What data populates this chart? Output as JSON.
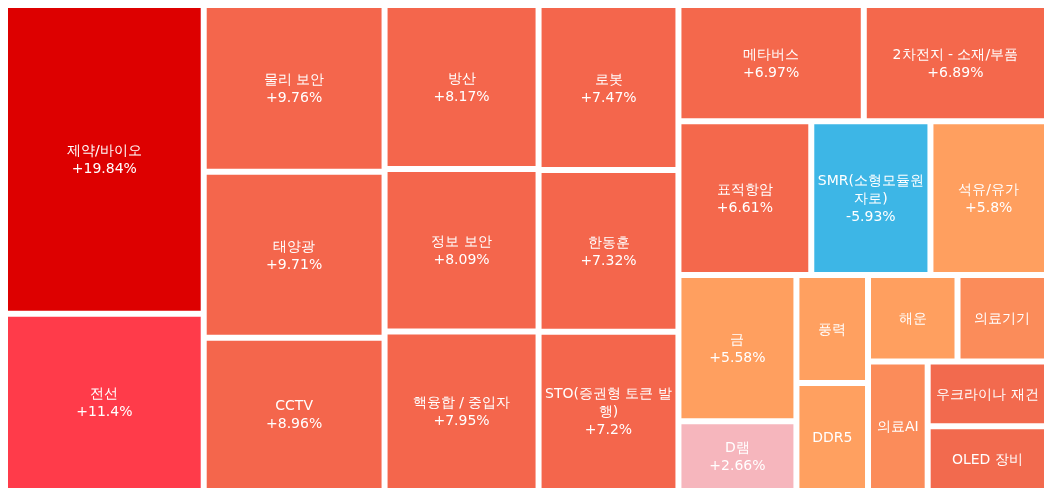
{
  "chart_data": {
    "type": "other",
    "categories": [
      "제약/바이오",
      "전선",
      "물리 보안",
      "태양광",
      "CCTV",
      "방산",
      "정보 보안",
      "핵융합 / 중입자",
      "로봇",
      "한동훈",
      "STO(증권형 토큰 발행)",
      "메타버스",
      "2차전지 - 소재/부품",
      "표적항암",
      "OLED 장비",
      "우크라이나 재건",
      "의료AI",
      "의료기기",
      "석유/유가",
      "해운",
      "금",
      "DDR5",
      "풍력",
      "D램",
      "SMR(소형모듈원자로)"
    ],
    "values": [
      19.84,
      11.4,
      9.76,
      9.71,
      8.96,
      8.17,
      8.09,
      7.95,
      7.47,
      7.32,
      7.2,
      6.97,
      6.89,
      6.61,
      null,
      null,
      null,
      null,
      5.8,
      null,
      5.58,
      null,
      null,
      2.66,
      -5.93
    ],
    "value_labels": [
      "+19.84%",
      "+11.4%",
      "+9.76%",
      "+9.71%",
      "+8.96%",
      "+8.17%",
      "+8.09%",
      "+7.95%",
      "+7.47%",
      "+7.32%",
      "+7.2%",
      "+6.97%",
      "+6.89%",
      "+6.61%",
      null,
      null,
      null,
      null,
      "+5.8%",
      null,
      "+5.58%",
      null,
      null,
      "+2.66%",
      "-5.93%"
    ],
    "colors": [
      "#dd0000",
      "#ff3b4a",
      "#f4664c",
      "#f4664c",
      "#f4664c",
      "#f4664c",
      "#f4664c",
      "#f4664c",
      "#f4664c",
      "#f4664c",
      "#f4664c",
      "#f4684c",
      "#f4684c",
      "#f4684c",
      "#f26a4e",
      "#f26a4e",
      "#fb8c5a",
      "#fb8c5a",
      "#ff9f5f",
      "#ff9f5f",
      "#ff9f5f",
      "#ffa060",
      "#ffa060",
      "#f6b6bd",
      "#3db6e6"
    ]
  }
}
